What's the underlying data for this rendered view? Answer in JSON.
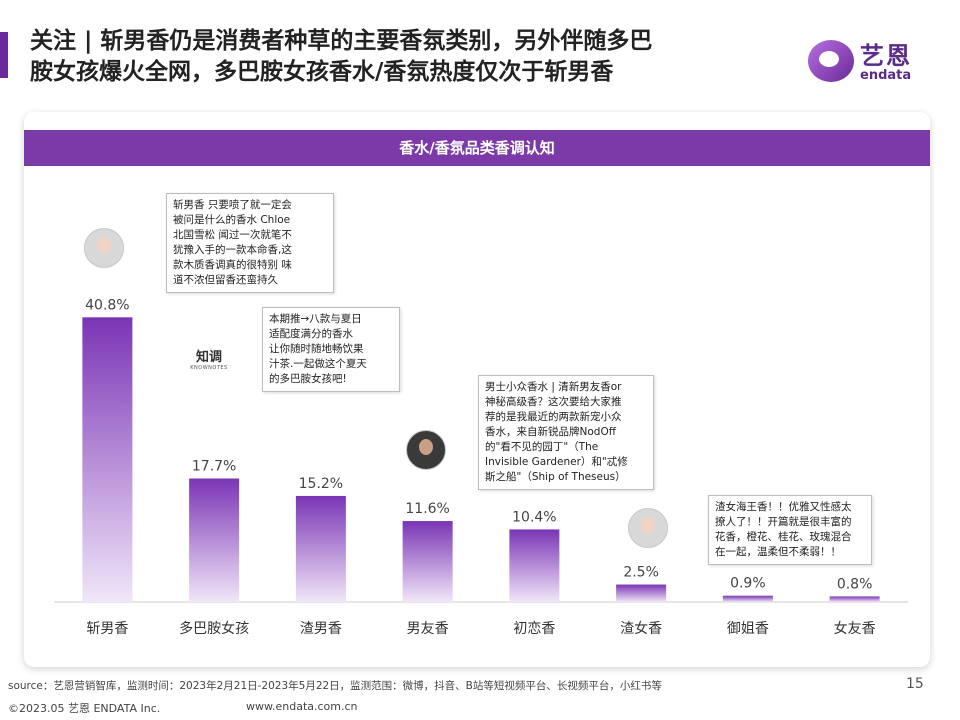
{
  "header": {
    "title_line1": "关注 | 斩男香仍是消费者种草的主要香氛类别，另外伴随多巴",
    "title_line2": "胺女孩爆火全网，多巴胺女孩香水/香氛热度仅次于斩男香"
  },
  "logo": {
    "cn": "艺恩",
    "en": "endata"
  },
  "card": {
    "header": "香水/香氛品类香调认知"
  },
  "chart_data": {
    "type": "bar",
    "title": "香水/香氛品类香调认知",
    "categories": [
      "斩男香",
      "多巴胺女孩",
      "渣男香",
      "男友香",
      "初恋香",
      "渣女香",
      "御姐香",
      "女友香"
    ],
    "values": [
      40.8,
      17.7,
      15.2,
      11.6,
      10.4,
      2.5,
      0.9,
      0.8
    ],
    "value_labels": [
      "40.8%",
      "17.7%",
      "15.2%",
      "11.6%",
      "10.4%",
      "2.5%",
      "0.9%",
      "0.8%"
    ],
    "ylim": [
      0,
      45
    ],
    "grid": false,
    "colors": {
      "bar_top": "#7a35b5",
      "bar_bottom": "#f1e6f8",
      "axis": "#cccccc"
    }
  },
  "bubbles": [
    {
      "text": "斩男香 只要喷了就一定会\n被问是什么的香水 Chloe\n北国雪松 闻过一次就笔不\n犹豫入手的一款本命香,这\n款木质香调真的很特别 味\n道不浓但留香还蛮持久"
    },
    {
      "text": "本期推→八款与夏日\n适配度满分的香水\n让你随时随地畅饮果\n汁茶.一起做这个夏天\n的多巴胺女孩吧!"
    },
    {
      "text": "男士小众香水 | 清新男友香or\n神秘高级香？这次要给大家推\n荐的是我最近的两款新宠小众\n香水，来自新锐品牌NodOff\n的\"看不见的园丁\"（The\nInvisible Gardener）和\"忒修\n斯之船\"（Ship of Theseus）"
    },
    {
      "text": "渣女海王香！！优雅又性感太\n撩人了！！开篇就是很丰富的\n花香，橙花、桂花、玫瑰混合\n在一起，温柔但不柔弱！！"
    }
  ],
  "brand_logo": {
    "cn": "知调",
    "en": "KNOWNOTES"
  },
  "footer": {
    "source": "source：艺恩营销智库，监测时间：2023年2月21日-2023年5月22日，监测范围：微博，抖音、B站等短视频平台、长视频平台，小红书等",
    "page_number": "15",
    "copyright": "©2023.05 艺恩 ENDATA Inc.",
    "website": "www.endata.com.cn"
  }
}
